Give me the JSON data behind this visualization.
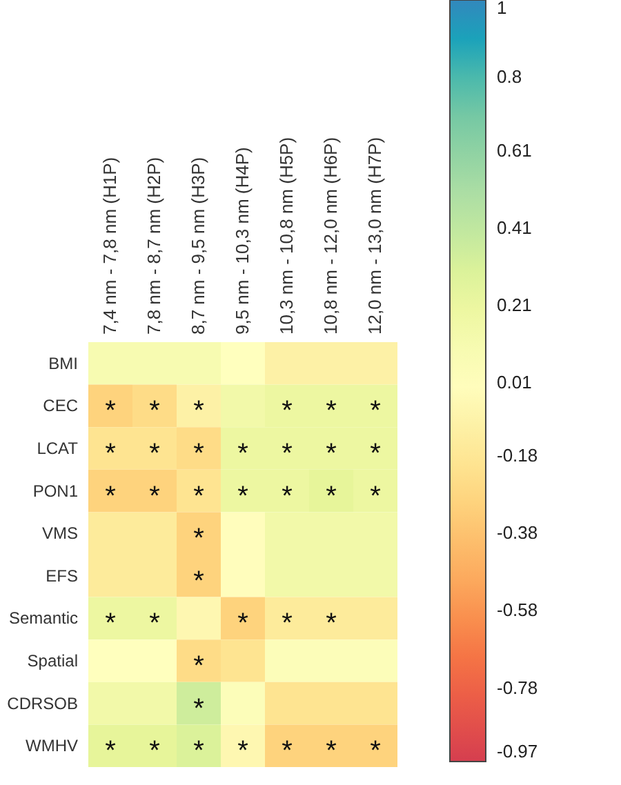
{
  "chart_data": {
    "type": "heatmap",
    "categories": [
      "7,4 nm - 7,8 nm (H1P)",
      "7,8 nm - 8,7 nm (H2P)",
      "8,7 nm - 9,5 nm (H3P)",
      "9,5 nm - 10,3 nm (H4P)",
      "10,3 nm - 10,8 nm (H5P)",
      "10,8 nm - 12,0 nm (H6P)",
      "12,0 nm - 13,0 nm (H7P)"
    ],
    "y_categories": [
      "BMI",
      "CEC",
      "LCAT",
      "PON1",
      "VMS",
      "EFS",
      "Semantic",
      "Spatial",
      "CDRSOB",
      "WMHV"
    ],
    "cells": [
      [
        0.1,
        0.1,
        0.1,
        0.02,
        -0.1,
        -0.1,
        -0.1
      ],
      [
        -0.3,
        -0.25,
        -0.1,
        0.15,
        0.2,
        0.2,
        0.2
      ],
      [
        -0.2,
        -0.2,
        -0.25,
        0.2,
        0.2,
        0.2,
        0.2
      ],
      [
        -0.3,
        -0.3,
        -0.2,
        0.2,
        0.2,
        0.25,
        0.2
      ],
      [
        -0.15,
        -0.15,
        -0.3,
        0.0,
        0.15,
        0.15,
        0.15
      ],
      [
        -0.15,
        -0.15,
        -0.3,
        0.0,
        0.15,
        0.15,
        0.15
      ],
      [
        0.2,
        0.2,
        -0.05,
        -0.3,
        -0.15,
        -0.15,
        -0.15
      ],
      [
        0.02,
        0.02,
        -0.25,
        -0.2,
        0.05,
        0.05,
        0.05
      ],
      [
        0.15,
        0.15,
        0.35,
        0.05,
        -0.2,
        -0.2,
        -0.2
      ],
      [
        0.25,
        0.25,
        0.3,
        -0.05,
        -0.3,
        -0.3,
        -0.3
      ]
    ],
    "cell_labels": [
      [
        null,
        null,
        null,
        null,
        null,
        null,
        null
      ],
      [
        "*",
        "*",
        "*",
        null,
        "*",
        "*",
        "*"
      ],
      [
        "*",
        "*",
        "*",
        "*",
        "*",
        "*",
        "*"
      ],
      [
        "*",
        "*",
        "*",
        "*",
        "*",
        "*",
        "*"
      ],
      [
        null,
        null,
        "*",
        null,
        null,
        null,
        null
      ],
      [
        null,
        null,
        "*",
        null,
        null,
        null,
        null
      ],
      [
        "*",
        "*",
        null,
        "*",
        "*",
        "*",
        null
      ],
      [
        null,
        null,
        "*",
        null,
        null,
        null,
        null
      ],
      [
        null,
        null,
        "*",
        null,
        null,
        null,
        null
      ],
      [
        "*",
        "*",
        "*",
        "*",
        "*",
        "*",
        "*"
      ]
    ],
    "clim": [
      -0.97,
      1
    ],
    "cticks": [
      1,
      0.8,
      0.61,
      0.41,
      0.21,
      0.01,
      -0.18,
      -0.38,
      -0.58,
      -0.78,
      -0.97
    ]
  }
}
